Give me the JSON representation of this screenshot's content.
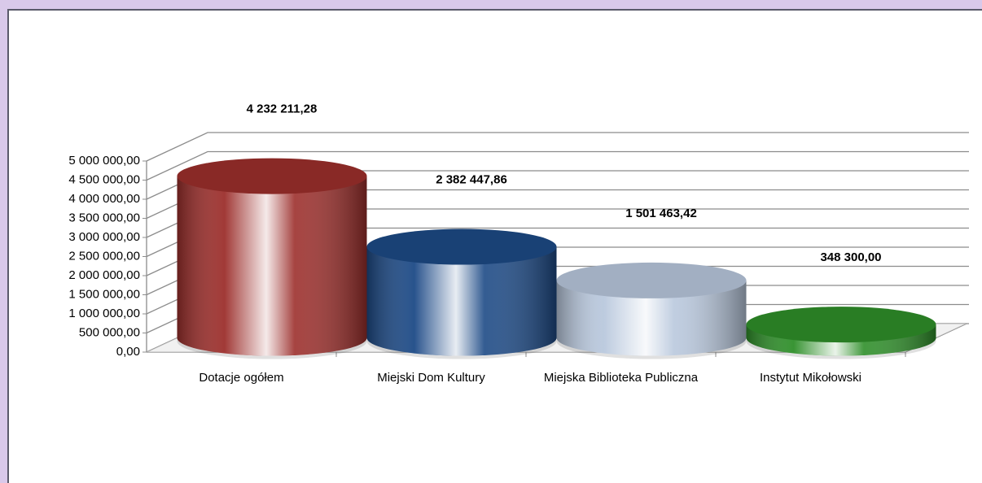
{
  "chart_data": {
    "type": "bar3d",
    "categories": [
      "Dotacje ogółem",
      "Miejski Dom Kultury",
      "Miejska Biblioteka Publiczna",
      "Instytut Mikołowski"
    ],
    "values": [
      4232211.28,
      2382447.86,
      1501463.42,
      348300.0
    ],
    "value_labels": [
      "4 232 211,28",
      "2 382 447,86",
      "1 501 463,42",
      "348 300,00"
    ],
    "colors": [
      "#9c2f2c",
      "#1d4a86",
      "#b9c8dd",
      "#2f8f2a"
    ],
    "ylim": [
      0,
      5000000
    ],
    "yticks": [
      {
        "value": 0,
        "label": "0,00"
      },
      {
        "value": 500000,
        "label": "500 000,00"
      },
      {
        "value": 1000000,
        "label": "1 000 000,00"
      },
      {
        "value": 1500000,
        "label": "1 500 000,00"
      },
      {
        "value": 2000000,
        "label": "2 000 000,00"
      },
      {
        "value": 2500000,
        "label": "2 500 000,00"
      },
      {
        "value": 3000000,
        "label": "3 000 000,00"
      },
      {
        "value": 3500000,
        "label": "3 500 000,00"
      },
      {
        "value": 4000000,
        "label": "4 000 000,00"
      },
      {
        "value": 4500000,
        "label": "4 500 000,00"
      },
      {
        "value": 5000000,
        "label": "5 000 000,00"
      }
    ],
    "grid": true
  }
}
